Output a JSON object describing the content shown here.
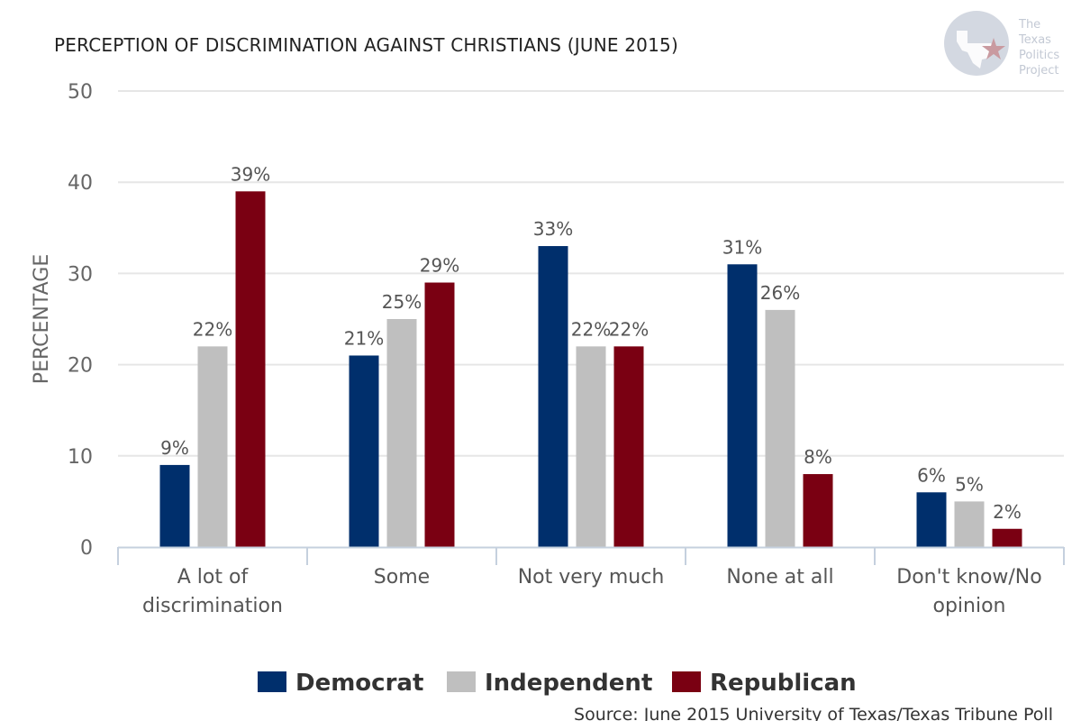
{
  "chart_data": {
    "type": "bar",
    "title": "PERCEPTION OF DISCRIMINATION AGAINST CHRISTIANS (JUNE 2015)",
    "ylabel": "PERCENTAGE",
    "xlabel": "",
    "ylim": [
      0,
      50
    ],
    "yticks": [
      0,
      10,
      20,
      30,
      40,
      50
    ],
    "grid": true,
    "legend_position": "bottom",
    "categories": [
      [
        "A lot of",
        "discrimination"
      ],
      [
        "Some"
      ],
      [
        "Not very much"
      ],
      [
        "None at all"
      ],
      [
        "Don't know/No",
        "opinion"
      ]
    ],
    "series": [
      {
        "name": "Democrat",
        "color": "#002f6c",
        "values": [
          9,
          21,
          33,
          31,
          6
        ],
        "labels": [
          "9%",
          "21%",
          "33%",
          "31%",
          "6%"
        ]
      },
      {
        "name": "Independent",
        "color": "#bfbfbf",
        "values": [
          22,
          25,
          22,
          26,
          5
        ],
        "labels": [
          "22%",
          "25%",
          "22%",
          "26%",
          "5%"
        ]
      },
      {
        "name": "Republican",
        "color": "#7a0012",
        "values": [
          39,
          29,
          22,
          8,
          2
        ],
        "labels": [
          "39%",
          "29%",
          "22%",
          "8%",
          "2%"
        ]
      }
    ],
    "source": "Source: June 2015 University of Texas/Texas Tribune Poll"
  },
  "logo": {
    "icon": "texas-star-logo-icon",
    "lines": [
      "The",
      "Texas",
      "Politics",
      "Project"
    ]
  }
}
